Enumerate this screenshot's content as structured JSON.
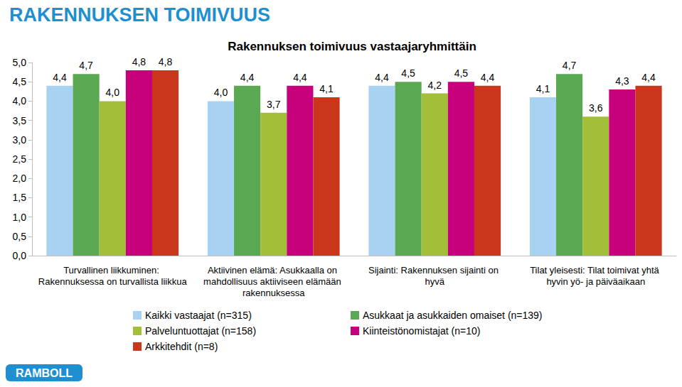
{
  "chart_data": {
    "type": "bar",
    "title": "RAKENNUKSEN TOIMIVUUS",
    "subtitle": "Rakennuksen toimivuus vastaajaryhmittäin",
    "annotations": [
      "RAMBOLL"
    ],
    "categories": [
      "Turvallinen liikkuminen: Rakennuksessa on turvallista liikkua",
      "Aktiivinen elämä: Asukkaalla on mahdollisuus aktiiviseen elämään rakennuksessa",
      "Sijainti: Rakennuksen sijainti on hyvä",
      "Tilat yleisesti: Tilat toimivat yhtä hyvin yö- ja päiväaikaan"
    ],
    "series": [
      {
        "name": "Kaikki vastaajat (n=315)",
        "color": "#a7d2f2",
        "values": [
          4.4,
          4.0,
          4.4,
          4.1
        ],
        "value_labels": [
          "4,4",
          "4,0",
          "4,4",
          "4,1"
        ]
      },
      {
        "name": "Asukkaat ja asukkaiden omaiset (n=139)",
        "color": "#5aa851",
        "values": [
          4.7,
          4.4,
          4.5,
          4.7
        ],
        "value_labels": [
          "4,7",
          "4,4",
          "4,5",
          "4,7"
        ]
      },
      {
        "name": "Palveluntuottajat (n=158)",
        "color": "#a3be39",
        "values": [
          4.0,
          3.7,
          4.2,
          3.6
        ],
        "value_labels": [
          "4,0",
          "3,7",
          "4,2",
          "3,6"
        ]
      },
      {
        "name": "Kiinteistönomistajat (n=10)",
        "color": "#c7007b",
        "values": [
          4.8,
          4.4,
          4.5,
          4.3
        ],
        "value_labels": [
          "4,8",
          "4,4",
          "4,5",
          "4,3"
        ]
      },
      {
        "name": "Arkkitehdit (n=8)",
        "color": "#c9361c",
        "values": [
          4.8,
          4.1,
          4.4,
          4.4
        ],
        "value_labels": [
          "4,8",
          "4,1",
          "4,4",
          "4,4"
        ]
      }
    ],
    "ylim": [
      0,
      5
    ],
    "yticks": [
      {
        "value": 0,
        "label": "0,0"
      },
      {
        "value": 0.5,
        "label": "0,5"
      },
      {
        "value": 1,
        "label": "1,0"
      },
      {
        "value": 1.5,
        "label": "1,5"
      },
      {
        "value": 2,
        "label": "2,0"
      },
      {
        "value": 2.5,
        "label": "2,5"
      },
      {
        "value": 3,
        "label": "3,0"
      },
      {
        "value": 3.5,
        "label": "3,5"
      },
      {
        "value": 4,
        "label": "4,0"
      },
      {
        "value": 4.5,
        "label": "4,5"
      },
      {
        "value": 5,
        "label": "5,0"
      }
    ],
    "grid": false,
    "data_labels": true,
    "legend": "bottom"
  }
}
